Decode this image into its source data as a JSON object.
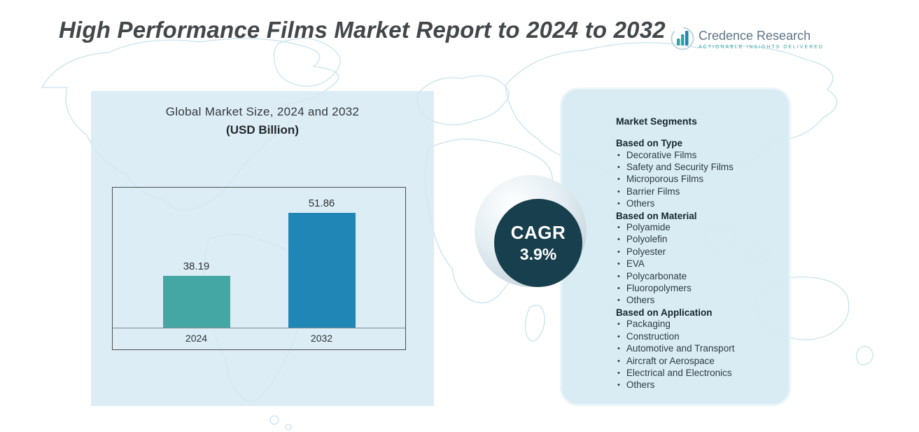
{
  "page": {
    "title": "High Performance Films Market Report to 2024 to 2032"
  },
  "logo": {
    "name": "Credence Research",
    "tagline": "Actionable Insights Delivered"
  },
  "chart": {
    "title": "Global Market Size, 2024 and 2032",
    "subtitle": "(USD Billion)"
  },
  "chart_data": {
    "type": "bar",
    "categories": [
      "2024",
      "2032"
    ],
    "values": [
      38.19,
      51.86
    ],
    "data_labels": [
      "38.19",
      "51.86"
    ],
    "title": "Global Market Size, 2024 and 2032 (USD Billion)",
    "xlabel": "",
    "ylabel": "",
    "ylim": [
      0,
      60
    ],
    "grid": false,
    "legend": "none",
    "bar_colors": [
      "#45a7a4",
      "#1f86b5"
    ]
  },
  "cagr": {
    "label": "CAGR",
    "value": "3.9%"
  },
  "segments": {
    "title": "Market Segments",
    "groups": [
      {
        "heading": "Based on Type",
        "items": [
          "Decorative Films",
          "Safety and Security Films",
          "Microporous Films",
          "Barrier Films",
          "Others"
        ]
      },
      {
        "heading": "Based on Material",
        "items": [
          "Polyamide",
          "Polyolefin",
          "Polyester",
          "EVA",
          "Polycarbonate",
          "Fluoropolymers",
          "Others"
        ]
      },
      {
        "heading": "Based on Application",
        "items": [
          "Packaging",
          "Construction",
          "Automotive and Transport",
          "Aircraft or Aerospace",
          "Electrical and Electronics",
          "Others"
        ]
      }
    ]
  },
  "colors": {
    "accent_teal": "#45a7a4",
    "accent_blue": "#1f86b5",
    "cagr_circle": "#173f4d",
    "panel_blue": "#d6eaf3",
    "map_line": "#c9e2ee"
  }
}
